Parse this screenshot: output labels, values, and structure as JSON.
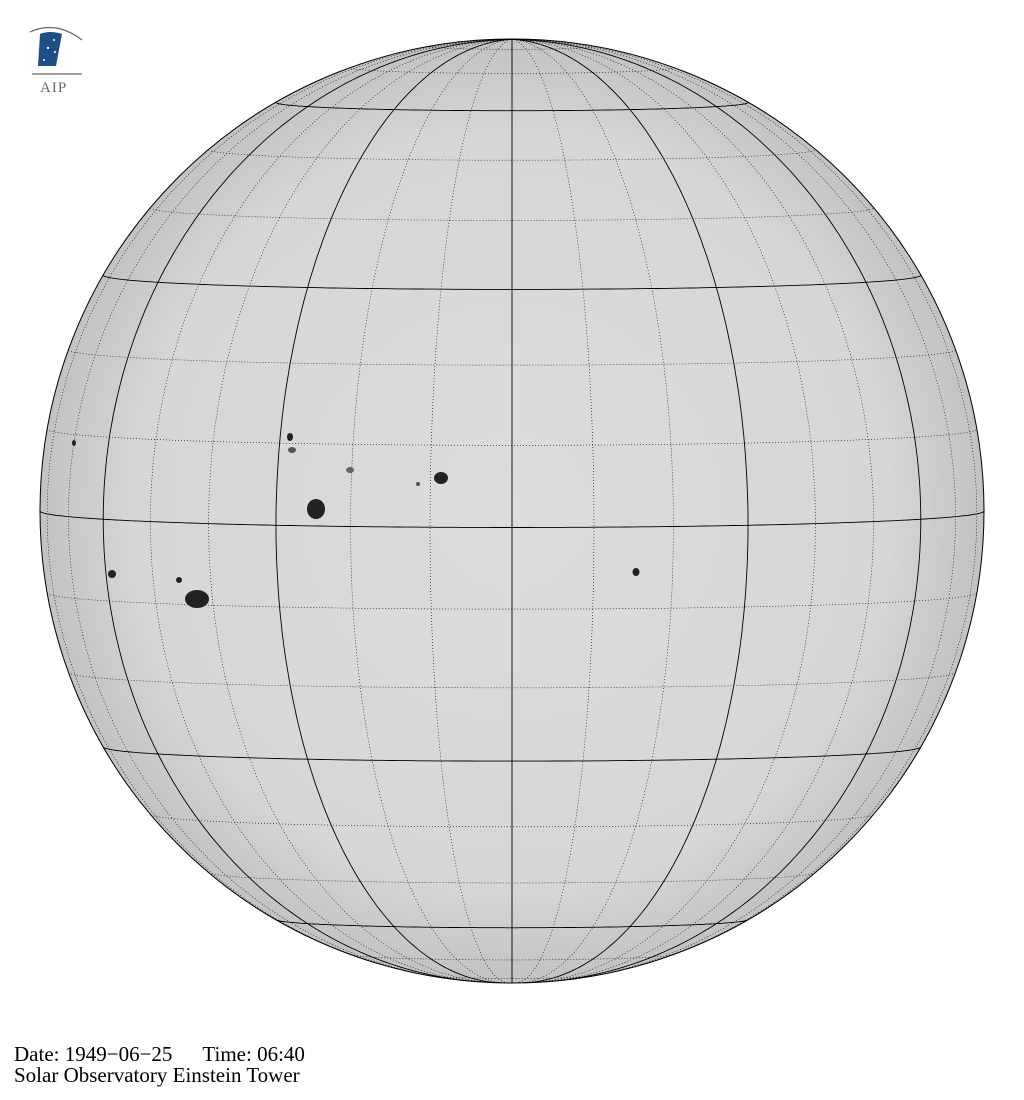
{
  "logo": {
    "text": "AIP"
  },
  "caption": {
    "date_label": "Date: 1949−06−25",
    "time_label": "Time: 06:40",
    "observatory": "Solar Observatory Einstein Tower"
  },
  "image": {
    "subject": "solar disk white-light",
    "grid": {
      "major_step_deg": 30,
      "minor_step_deg": 10,
      "b0_deg": 2
    },
    "colors": {
      "disk": "#d9d9d9",
      "limb": "#c4c4c4",
      "grid": "#000000",
      "logo_blue": "#1d4f86"
    }
  }
}
